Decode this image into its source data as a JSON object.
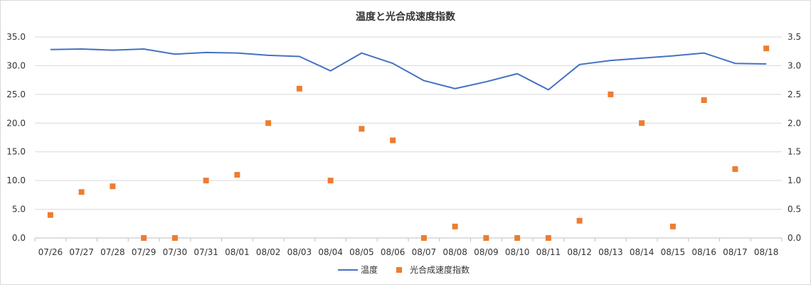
{
  "chart_data": {
    "type": "line",
    "title": "温度と光合成速度指数",
    "categories": [
      "07/26",
      "07/27",
      "07/28",
      "07/29",
      "07/30",
      "07/31",
      "08/01",
      "08/02",
      "08/03",
      "08/04",
      "08/05",
      "08/06",
      "08/07",
      "08/08",
      "08/09",
      "08/10",
      "08/11",
      "08/12",
      "08/13",
      "08/14",
      "08/15",
      "08/16",
      "08/17",
      "08/18"
    ],
    "y_left": {
      "min": 0,
      "max": 35,
      "step": 5,
      "tick_labels": [
        "0.0",
        "5.0",
        "10.0",
        "15.0",
        "20.0",
        "25.0",
        "30.0",
        "35.0"
      ]
    },
    "y_right": {
      "min": 0,
      "max": 3.5,
      "step": 0.5,
      "tick_labels": [
        "0.0",
        "0.5",
        "1.0",
        "1.5",
        "2.0",
        "2.5",
        "3.0",
        "3.5"
      ]
    },
    "grid": true,
    "legend_position": "bottom",
    "series": [
      {
        "name": "温度",
        "kind": "line",
        "axis": "left",
        "color": "#4472C4",
        "values": [
          32.8,
          32.9,
          32.7,
          32.9,
          32.0,
          32.3,
          32.2,
          31.8,
          31.6,
          29.1,
          32.2,
          30.4,
          27.4,
          26.0,
          27.2,
          28.6,
          25.8,
          30.2,
          30.9,
          31.3,
          31.7,
          32.2,
          30.4,
          30.3
        ]
      },
      {
        "name": "光合成速度指数",
        "kind": "marker",
        "axis": "right",
        "color": "#ED7D31",
        "values": [
          0.4,
          0.8,
          0.9,
          0.0,
          0.0,
          1.0,
          1.1,
          2.0,
          2.6,
          1.0,
          1.9,
          1.7,
          0.0,
          0.2,
          0.0,
          0.0,
          0.0,
          0.3,
          2.5,
          2.0,
          0.2,
          2.4,
          1.2,
          3.3
        ]
      }
    ]
  }
}
